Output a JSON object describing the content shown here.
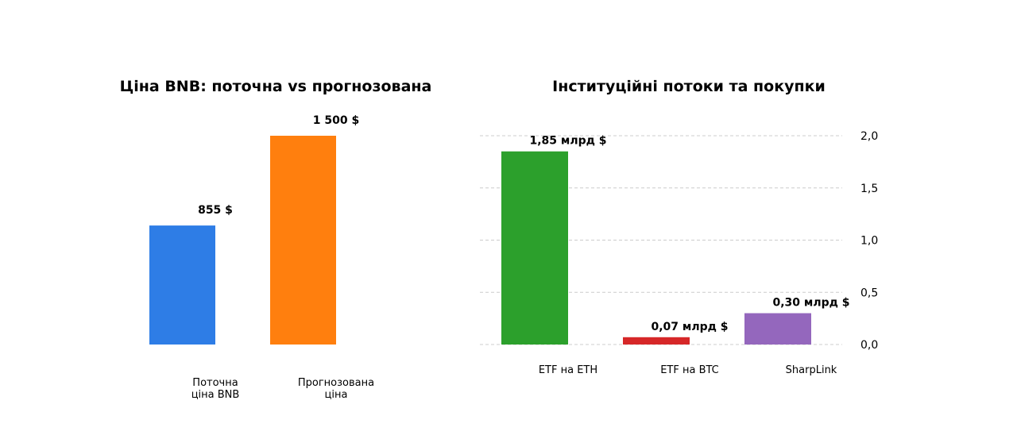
{
  "chart_data": [
    {
      "type": "bar",
      "title": "Ціна BNB: поточна vs прогнозована",
      "categories": [
        [
          "Поточна",
          "ціна BNB"
        ],
        [
          "Прогнозована",
          "ціна"
        ]
      ],
      "values": [
        855,
        1500
      ],
      "data_labels": [
        "855 $",
        "1 500 $"
      ],
      "colors": [
        "#2e7de6",
        "#ff7f0e"
      ],
      "ylim": [
        0,
        1500
      ],
      "axis_visible": false,
      "grid": false
    },
    {
      "type": "bar",
      "title": "Інституційні потоки та покупки",
      "categories": [
        "ETF на ETH",
        "ETF на BTC",
        "SharpLink"
      ],
      "values": [
        1.85,
        0.07,
        0.3
      ],
      "data_labels": [
        "1,85 млрд $",
        "0,07 млрд $",
        "0,30 млрд $"
      ],
      "colors": [
        "#2ca02c",
        "#d62728",
        "#9467bd"
      ],
      "ylim": [
        0,
        2.0
      ],
      "yticks": [
        "0,0",
        "0,5",
        "1,0",
        "1,5",
        "2,0"
      ],
      "yaxis_position": "right",
      "grid": true
    }
  ]
}
